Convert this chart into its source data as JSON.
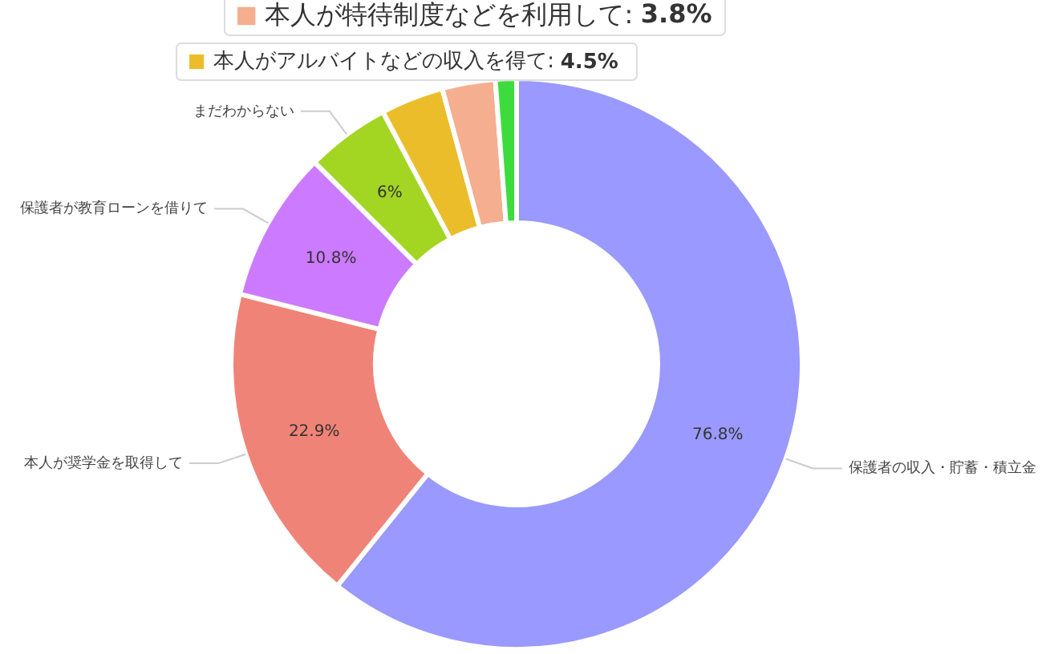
{
  "chart_data": {
    "type": "donut",
    "categories": [
      "保護者の収入・貯蓄・積立金",
      "本人が奨学金を取得して",
      "保護者が教育ローンを借りて",
      "まだわからない",
      "本人がアルバイトなどの収入を得て",
      "本人が特待制度などを利用して",
      null
    ],
    "values": [
      76.8,
      22.9,
      10.8,
      6,
      4.5,
      3.8,
      1.5
    ],
    "colors": [
      "#9999ff",
      "#f08377",
      "#cc7aff",
      "#a3d523",
      "#ebbd2a",
      "#f5ae8f",
      "#3ddc3d"
    ],
    "value_labels": [
      "76.8%",
      "22.9%",
      "10.8%",
      "6%",
      null,
      null,
      null
    ],
    "legend": "top",
    "annotations": [
      {
        "text": ": 3.8%",
        "x": "本人が特待制度などを利用して"
      },
      {
        "text": ": 4.5%",
        "x": "本人がアルバイトなどの収入を得て"
      }
    ]
  }
}
